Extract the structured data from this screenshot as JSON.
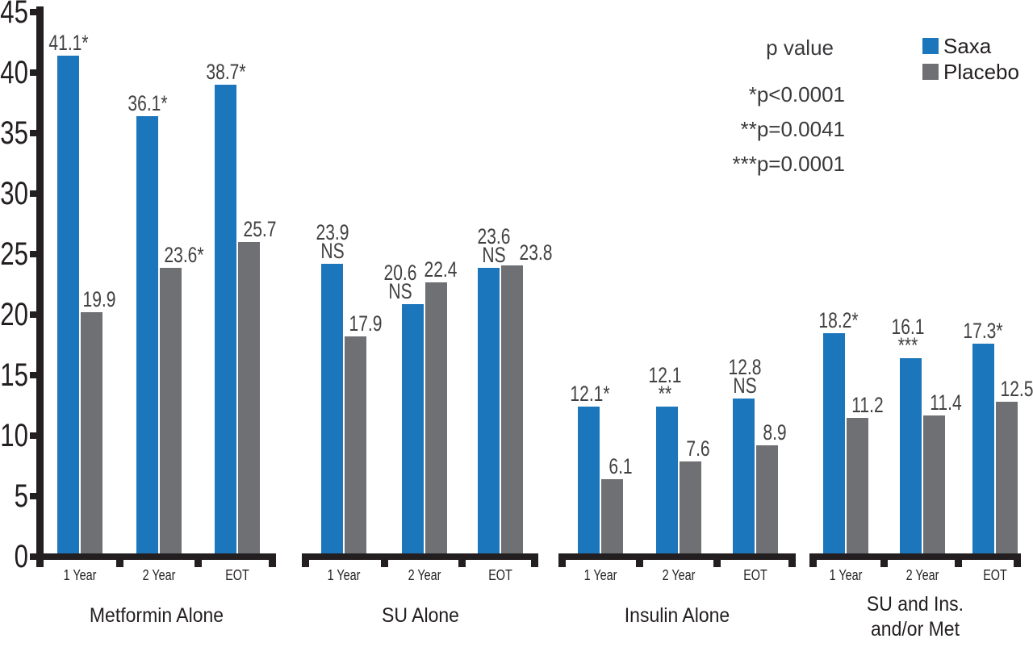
{
  "chart_data": {
    "type": "bar",
    "ylim": [
      0,
      45
    ],
    "yticks": [
      0,
      5,
      10,
      15,
      20,
      25,
      30,
      35,
      40,
      45
    ],
    "grid": false,
    "legend_position": "top-right",
    "legend": [
      {
        "label": "Saxa",
        "color": "#1c76bc"
      },
      {
        "label": "Placebo",
        "color": "#6f7073"
      }
    ],
    "pvalue_note": {
      "title": "p value",
      "lines": [
        "*p<0.0001",
        "**p=0.0041",
        "***p=0.0001"
      ]
    },
    "timepoints": [
      "1 Year",
      "2 Year",
      "EOT"
    ],
    "colors": {
      "axis": "#231f20",
      "value_label": "#414042"
    },
    "groups": [
      {
        "label": "Metformin Alone",
        "label_lines": [
          "Metformin Alone"
        ],
        "points": [
          {
            "timepoint": "1 Year",
            "saxa": {
              "value": 41.1,
              "marker": "*"
            },
            "placebo": {
              "value": 19.9,
              "marker": ""
            }
          },
          {
            "timepoint": "2 Year",
            "saxa": {
              "value": 36.1,
              "marker": "*"
            },
            "placebo": {
              "value": 23.6,
              "marker": "*"
            }
          },
          {
            "timepoint": "EOT",
            "saxa": {
              "value": 38.7,
              "marker": "*"
            },
            "placebo": {
              "value": 25.7,
              "marker": ""
            }
          }
        ]
      },
      {
        "label": "SU Alone",
        "label_lines": [
          "SU Alone"
        ],
        "points": [
          {
            "timepoint": "1 Year",
            "saxa": {
              "value": 23.9,
              "marker": "NS"
            },
            "placebo": {
              "value": 17.9,
              "marker": ""
            }
          },
          {
            "timepoint": "2 Year",
            "saxa": {
              "value": 20.6,
              "marker": "NS"
            },
            "placebo": {
              "value": 22.4,
              "marker": ""
            }
          },
          {
            "timepoint": "EOT",
            "saxa": {
              "value": 23.6,
              "marker": "NS"
            },
            "placebo": {
              "value": 23.8,
              "marker": ""
            }
          }
        ]
      },
      {
        "label": "Insulin Alone",
        "label_lines": [
          "Insulin Alone"
        ],
        "points": [
          {
            "timepoint": "1 Year",
            "saxa": {
              "value": 12.1,
              "marker": "*"
            },
            "placebo": {
              "value": 6.1,
              "marker": ""
            }
          },
          {
            "timepoint": "2 Year",
            "saxa": {
              "value": 12.1,
              "marker": "**"
            },
            "placebo": {
              "value": 7.6,
              "marker": ""
            }
          },
          {
            "timepoint": "EOT",
            "saxa": {
              "value": 12.8,
              "marker": "NS"
            },
            "placebo": {
              "value": 8.9,
              "marker": ""
            }
          }
        ]
      },
      {
        "label": "SU and Ins. and/or Met",
        "label_lines": [
          "SU and Ins.",
          "and/or Met"
        ],
        "points": [
          {
            "timepoint": "1 Year",
            "saxa": {
              "value": 18.2,
              "marker": "*"
            },
            "placebo": {
              "value": 11.2,
              "marker": ""
            }
          },
          {
            "timepoint": "2 Year",
            "saxa": {
              "value": 16.1,
              "marker": "***"
            },
            "placebo": {
              "value": 11.4,
              "marker": ""
            }
          },
          {
            "timepoint": "EOT",
            "saxa": {
              "value": 17.3,
              "marker": "*"
            },
            "placebo": {
              "value": 12.5,
              "marker": ""
            }
          }
        ]
      }
    ]
  }
}
